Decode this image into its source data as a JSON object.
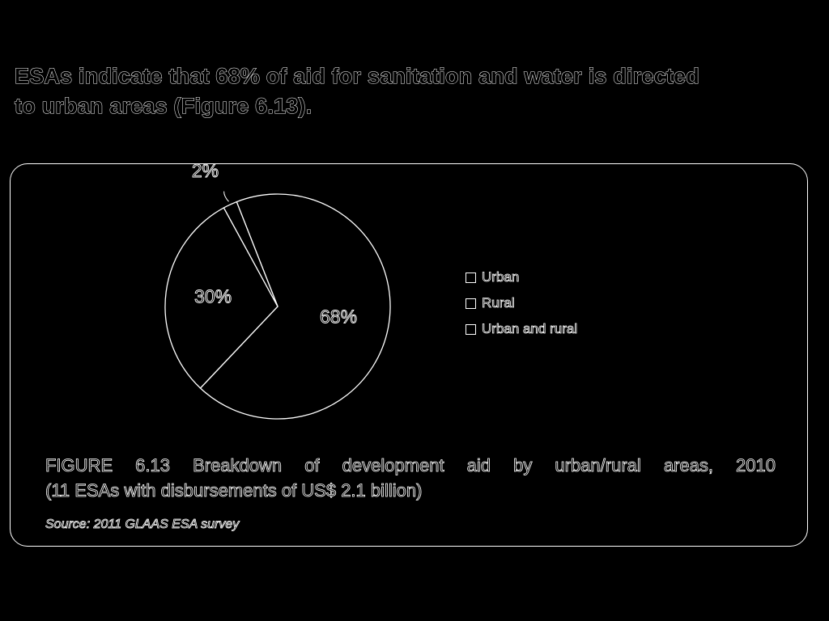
{
  "headline": {
    "line1": "ESAs indicate that 68% of aid for sanitation and water is directed",
    "line2": "to urban areas (Figure 6.13)."
  },
  "chart_data": {
    "type": "pie",
    "categories": [
      "Urban",
      "Rural",
      "Urban and rural"
    ],
    "values": [
      68,
      30,
      2
    ],
    "slice_labels": [
      "68%",
      "30%",
      "2%"
    ],
    "legend_position": "right",
    "colors": [
      "#000000",
      "#000000",
      "#000000"
    ],
    "outline_color": "#ffffff"
  },
  "caption": {
    "line1": "FIGURE 6.13 Breakdown of development aid by urban/rural areas, 2010",
    "line2": "(11 ESAs with disbursements of US$ 2.1 billion)"
  },
  "source": "Source: 2011 GLAAS ESA survey"
}
